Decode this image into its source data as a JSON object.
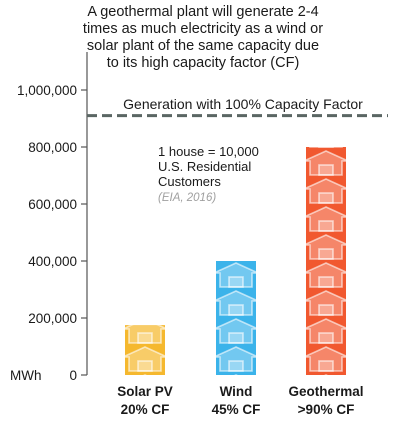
{
  "title_lines": [
    "A geothermal plant will generate 2-4",
    "times as much electricity as a wind or",
    "solar plant of the same capacity due",
    "to its high capacity factor (CF)"
  ],
  "reference_label": "Generation with 100% Capacity Factor",
  "note_lines": [
    "1 house = 10,000",
    "U.S. Residential",
    "Customers"
  ],
  "source": "(EIA, 2016)",
  "chart_data": {
    "type": "bar",
    "categories": [
      "Solar PV",
      "Wind",
      "Geothermal"
    ],
    "category_sublabels": [
      "20% CF",
      "45% CF",
      ">90% CF"
    ],
    "values": [
      175000,
      400000,
      800000
    ],
    "colors": [
      "#f5b82e",
      "#3bb3ea",
      "#f1582f"
    ],
    "icon": "house-icon",
    "reference_line": 910000,
    "ylabel": "MWh",
    "ylim": [
      0,
      1000000
    ],
    "yticks": [
      0,
      200000,
      400000,
      600000,
      800000,
      1000000
    ],
    "ytick_labels": [
      "0",
      "200,000",
      "400,000",
      "600,000",
      "800,000",
      "1,000,000"
    ],
    "grid": false
  }
}
